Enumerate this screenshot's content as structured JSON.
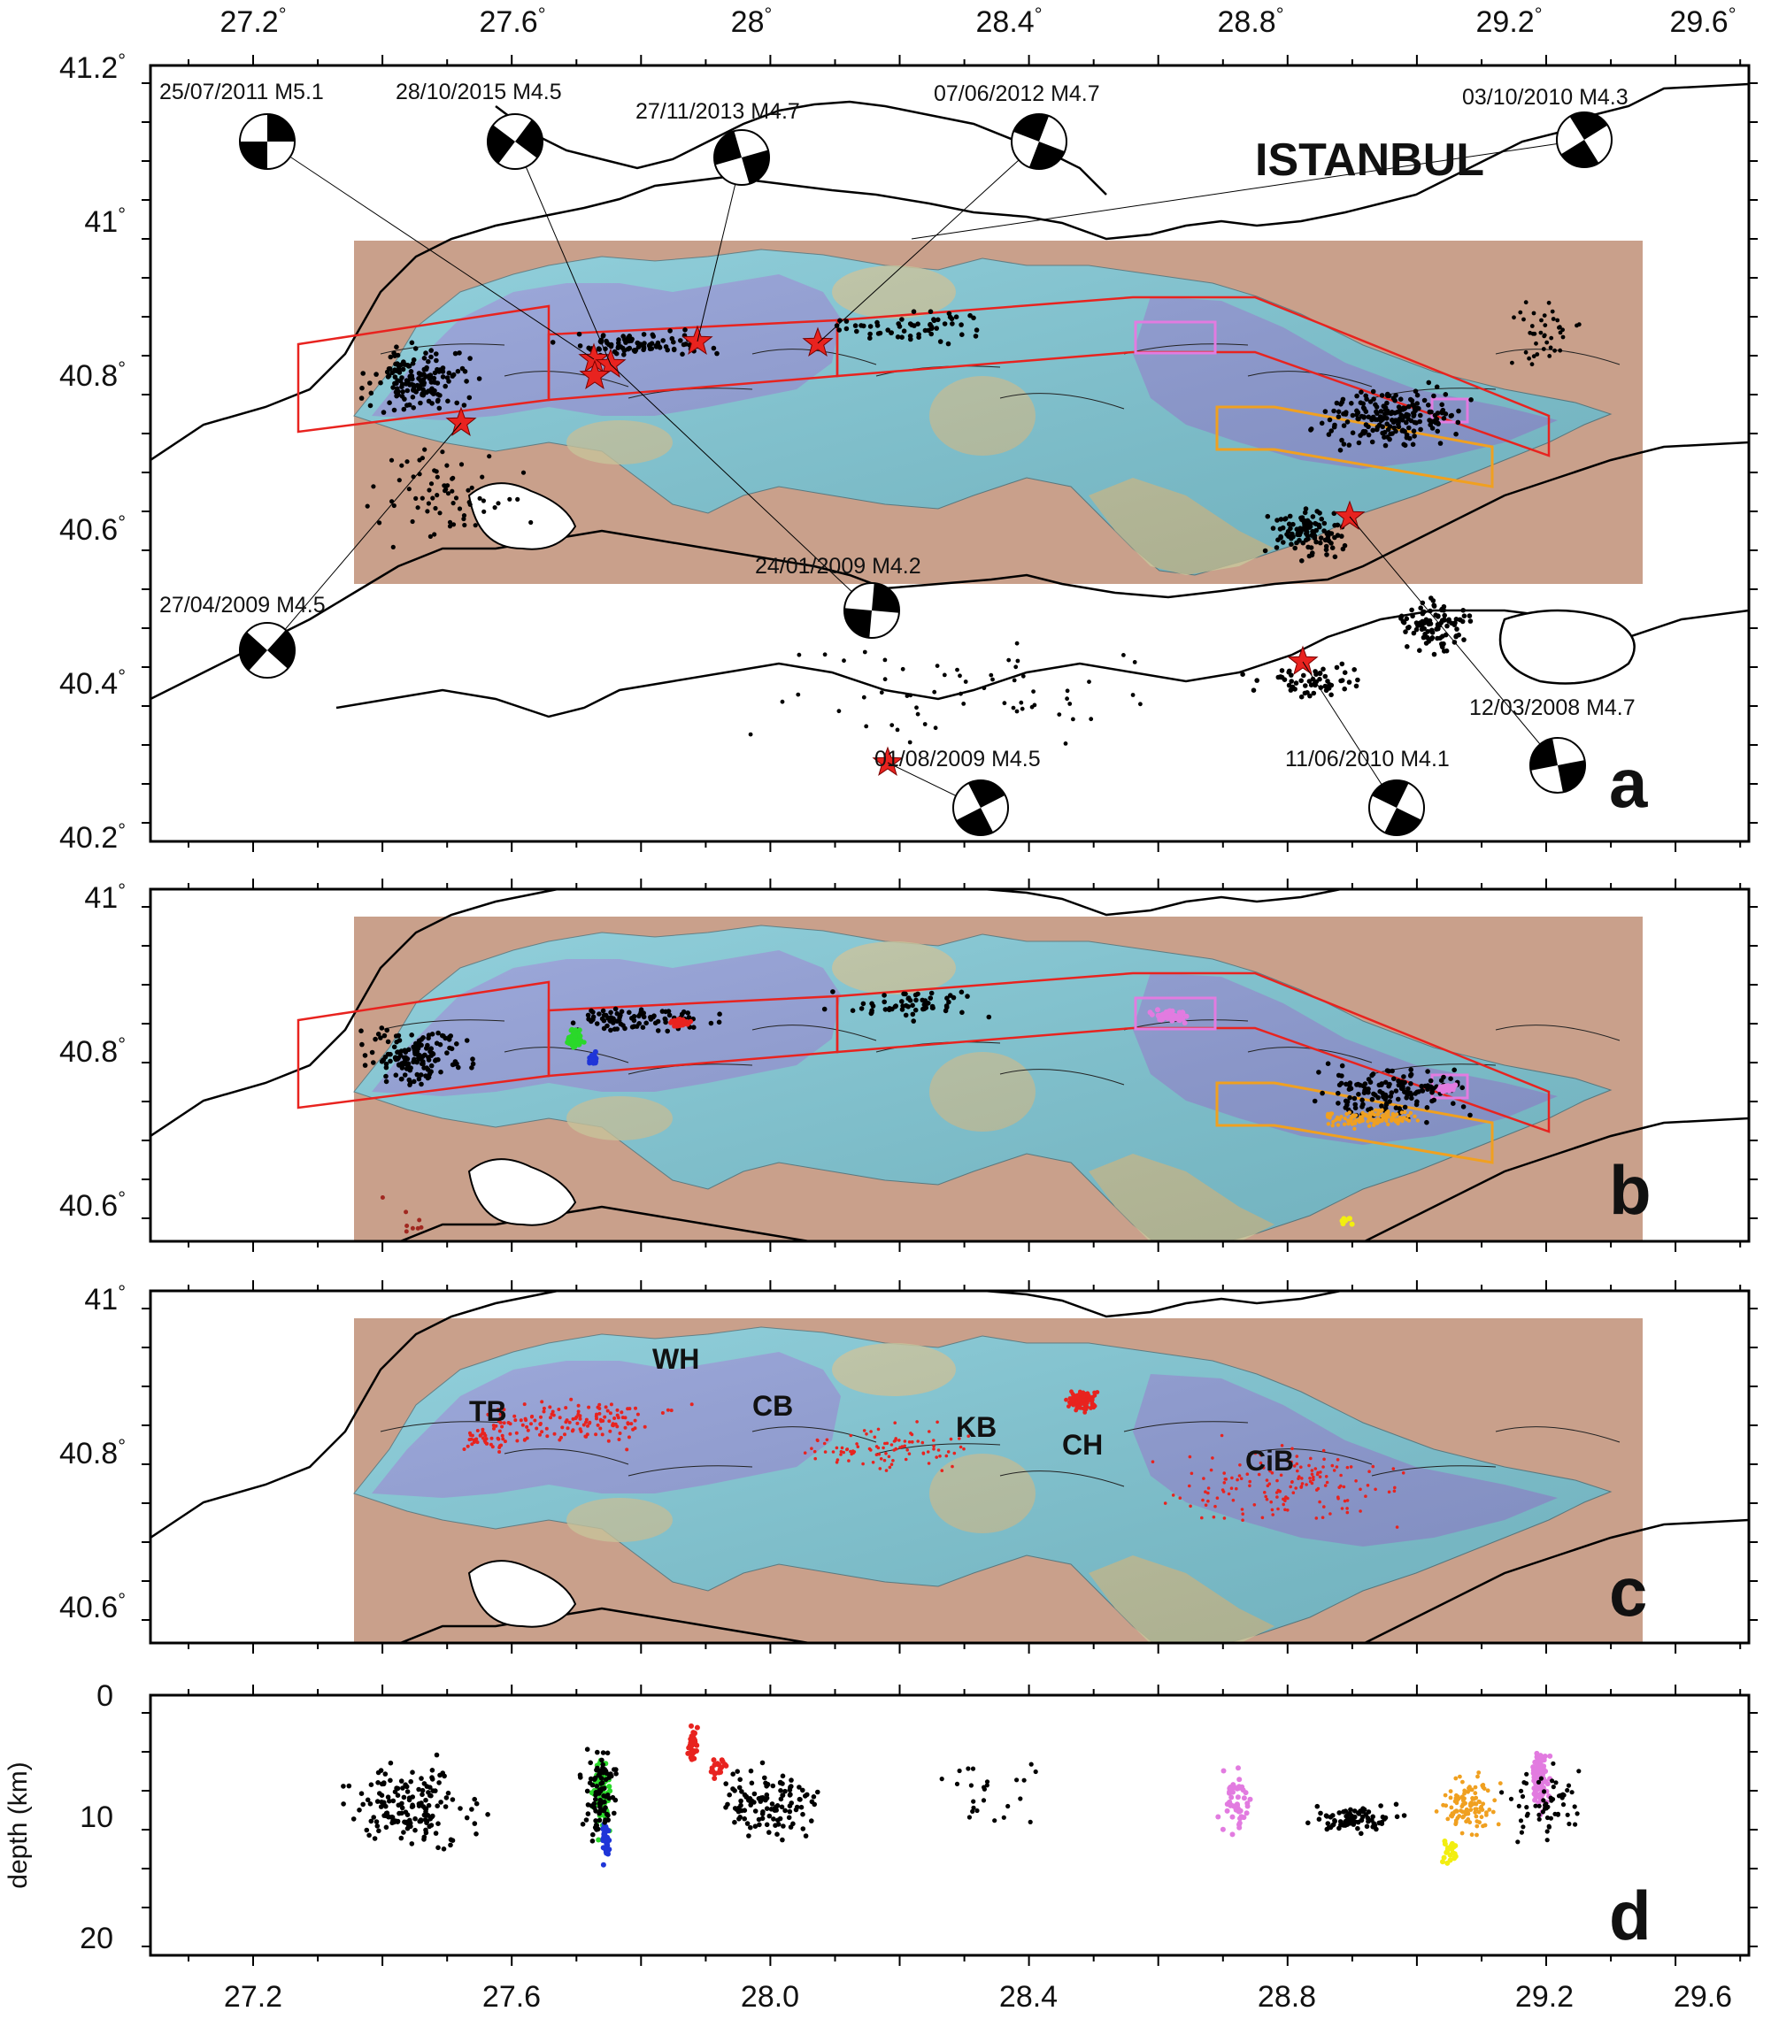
{
  "figure": {
    "panel_letters": [
      "a",
      "b",
      "c",
      "d"
    ],
    "city_label": "ISTANBUL",
    "depth_axis_title": "depth (km)"
  },
  "axes": {
    "lon_ticks": [
      "27.2",
      "27.6",
      "28",
      "28.4",
      "28.8",
      "29.2",
      "29.6"
    ],
    "bottom_lon_ticks": [
      "27.2",
      "27.6",
      "28.0",
      "28.4",
      "28.8",
      "29.2",
      "29.6"
    ],
    "panel_a_lat_ticks": [
      "41.2",
      "41",
      "40.8",
      "40.6",
      "40.4",
      "40.2"
    ],
    "panel_b_lat_ticks": [
      "41",
      "40.8",
      "40.6"
    ],
    "panel_c_lat_ticks": [
      "41",
      "40.8",
      "40.6"
    ],
    "depth_ticks": [
      "0",
      "10",
      "20"
    ]
  },
  "events": [
    {
      "label": "25/07/2011 M5.1",
      "lon": 27.73,
      "lat": 40.82,
      "mechanism": "strike-slip"
    },
    {
      "label": "28/10/2015 M4.5",
      "lon": 27.75,
      "lat": 40.83,
      "mechanism": "strike-slip"
    },
    {
      "label": "27/11/2013 M4.7",
      "lon": 27.93,
      "lat": 40.84,
      "mechanism": "strike-slip"
    },
    {
      "label": "07/06/2012 M4.7",
      "lon": 28.12,
      "lat": 40.84,
      "mechanism": "normal-oblique"
    },
    {
      "label": "03/10/2010 M4.3",
      "lon": 27.92,
      "lat": 40.85,
      "mechanism": "strike-slip"
    },
    {
      "label": "24/01/2009 M4.2",
      "lon": 27.74,
      "lat": 40.79,
      "mechanism": "strike-slip"
    },
    {
      "label": "27/04/2009 M4.5",
      "lon": 27.52,
      "lat": 40.74,
      "mechanism": "strike-slip"
    },
    {
      "label": "12/03/2008 M4.7",
      "lon": 29.03,
      "lat": 40.62,
      "mechanism": "strike-slip"
    },
    {
      "label": "11/06/2010 M4.1",
      "lon": 28.97,
      "lat": 40.43,
      "mechanism": "strike-slip"
    },
    {
      "label": "01/08/2009 M4.5",
      "lon": 28.24,
      "lat": 40.31,
      "mechanism": "strike-slip"
    }
  ],
  "basins": [
    {
      "label": "TB",
      "lon": 27.53,
      "lat": 40.8
    },
    {
      "label": "WH",
      "lon": 27.84,
      "lat": 40.9
    },
    {
      "label": "CB",
      "lon": 28.06,
      "lat": 40.82
    },
    {
      "label": "KB",
      "lon": 28.43,
      "lat": 40.8
    },
    {
      "label": "CH",
      "lon": 28.63,
      "lat": 40.78
    },
    {
      "label": "CiB",
      "lon": 28.95,
      "lat": 40.76
    }
  ],
  "colors": {
    "frame": "#000000",
    "shelf": "#c9a08b",
    "deep_basin": "#8f9ad6",
    "mid_depth": "#7fc8d6",
    "shallow": "#c8c39a",
    "seismicity": "#000000",
    "star": "#e8231f",
    "boxes_red": "#e8231f",
    "boxes_pink": "#e27be0",
    "boxes_orange": "#f0a020",
    "cluster_green": "#2ad82a",
    "cluster_blue": "#1f35d8",
    "cluster_yellow": "#f2ee10",
    "cluster_brown": "#a02820"
  }
}
